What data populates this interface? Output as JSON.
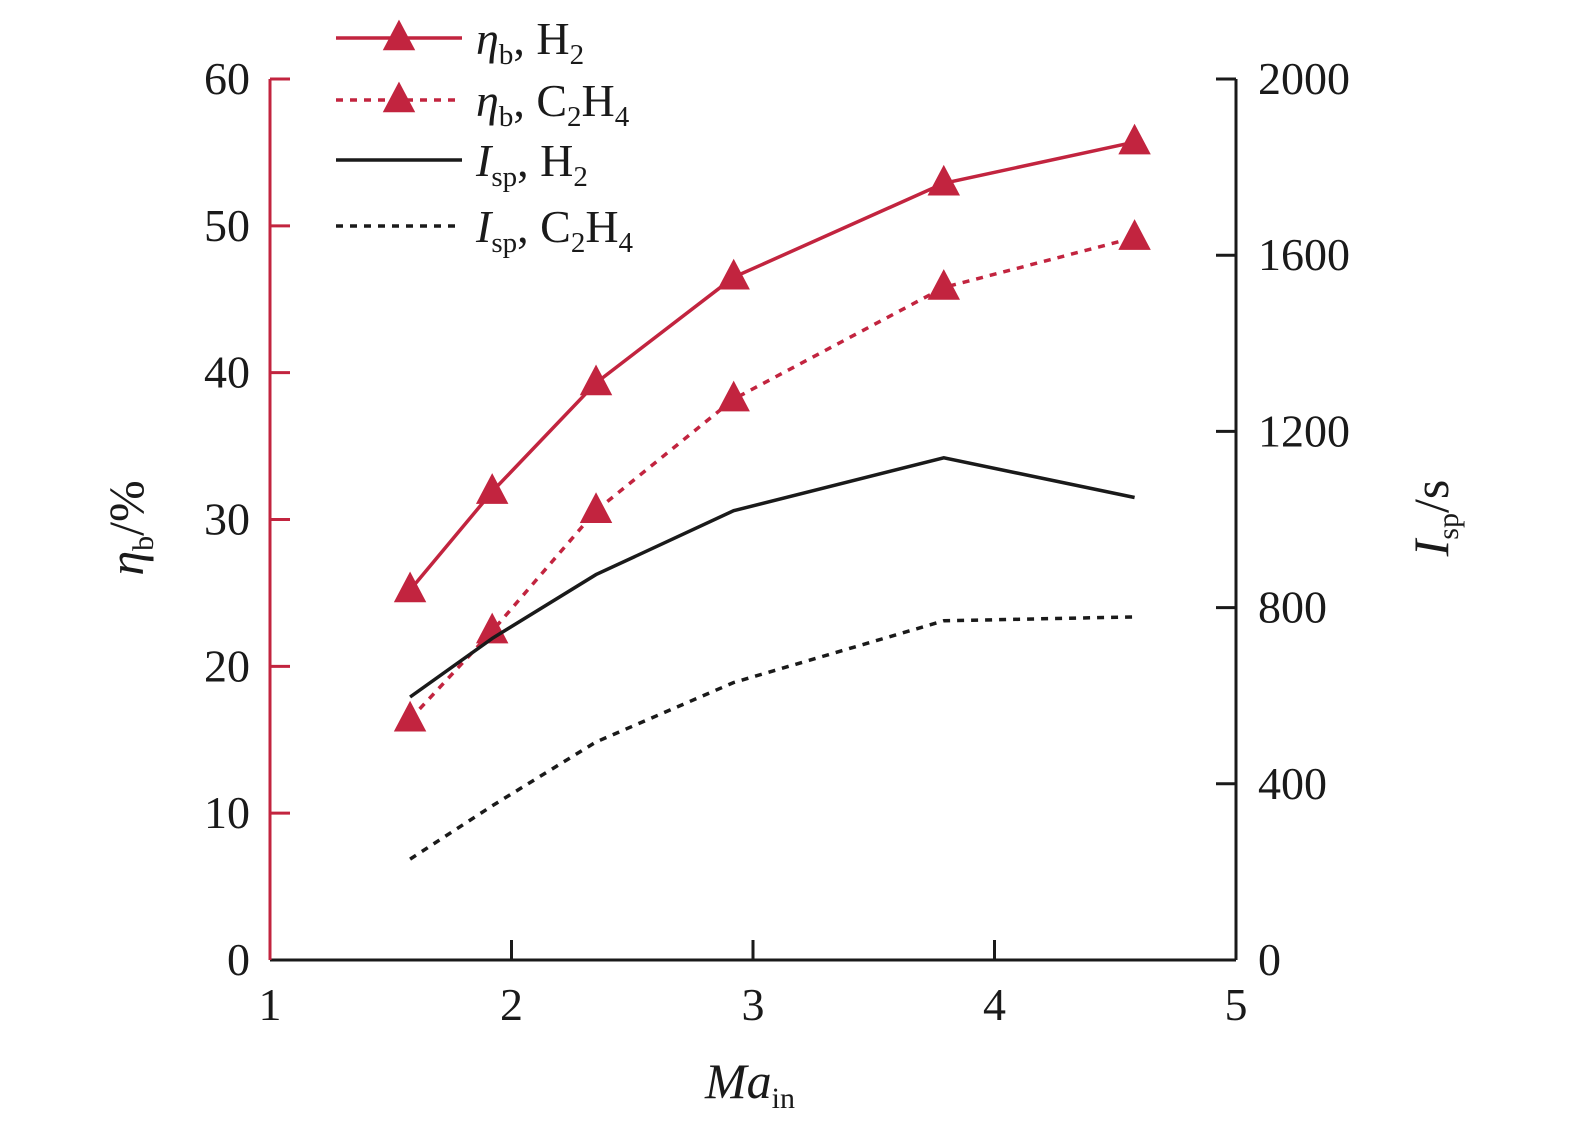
{
  "chart_data": {
    "type": "line",
    "xlabel": {
      "main": "Ma",
      "sub": "in"
    },
    "ylabel_left": {
      "main": "η",
      "sub": "b",
      "unit": "/%"
    },
    "ylabel_right": {
      "main": "I",
      "sub": "sp",
      "unit": "/s"
    },
    "xlim": [
      1,
      5
    ],
    "ylim_left": [
      0,
      60
    ],
    "ylim_right": [
      0,
      2000
    ],
    "x_ticks": [
      1,
      2,
      3,
      4,
      5
    ],
    "y_ticks_left": [
      0,
      10,
      20,
      30,
      40,
      50,
      60
    ],
    "y_ticks_right": [
      0,
      400,
      800,
      1200,
      1600,
      2000
    ],
    "grid": false,
    "legend_position": "top-left",
    "colors": {
      "eta": "#c2243f",
      "isp": "#1a1a1a",
      "axis_left": "#c2243f",
      "axis": "#1a1a1a"
    },
    "series": [
      {
        "name": "η_b, H_2",
        "legend": {
          "sym": "η",
          "sym_sub": "b",
          "fuel": "H",
          "fuel_sub1": "2",
          "fuel_mid": "",
          "fuel_sub2": ""
        },
        "axis": "left",
        "style": "solid",
        "marker": "triangle",
        "color": "#c2243f",
        "x": [
          1.58,
          1.92,
          2.35,
          2.92,
          3.79,
          4.58
        ],
        "y": [
          25.2,
          31.9,
          39.3,
          46.5,
          52.9,
          55.7
        ]
      },
      {
        "name": "η_b, C_2H_4",
        "legend": {
          "sym": "η",
          "sym_sub": "b",
          "fuel": "C",
          "fuel_sub1": "2",
          "fuel_mid": "H",
          "fuel_sub2": "4"
        },
        "axis": "left",
        "style": "dotted",
        "marker": "triangle",
        "color": "#c2243f",
        "x": [
          1.58,
          1.92,
          2.35,
          2.92,
          3.79,
          4.58
        ],
        "y": [
          16.4,
          22.4,
          30.6,
          38.2,
          45.8,
          49.2
        ]
      },
      {
        "name": "I_sp, H_2",
        "legend": {
          "sym": "I",
          "sym_sub": "sp",
          "fuel": "H",
          "fuel_sub1": "2",
          "fuel_mid": "",
          "fuel_sub2": ""
        },
        "axis": "right",
        "style": "solid",
        "marker": "none",
        "color": "#1a1a1a",
        "x": [
          1.58,
          1.92,
          2.35,
          2.92,
          3.79,
          4.58
        ],
        "y": [
          597,
          730,
          875,
          1020,
          1140,
          1050
        ]
      },
      {
        "name": "I_sp, C_2H_4",
        "legend": {
          "sym": "I",
          "sym_sub": "sp",
          "fuel": "C",
          "fuel_sub1": "2",
          "fuel_mid": "H",
          "fuel_sub2": "4"
        },
        "axis": "right",
        "style": "dotted",
        "marker": "none",
        "color": "#1a1a1a",
        "x": [
          1.58,
          1.92,
          2.35,
          2.92,
          3.79,
          4.58
        ],
        "y": [
          229,
          350,
          495,
          630,
          770,
          779
        ]
      }
    ]
  }
}
